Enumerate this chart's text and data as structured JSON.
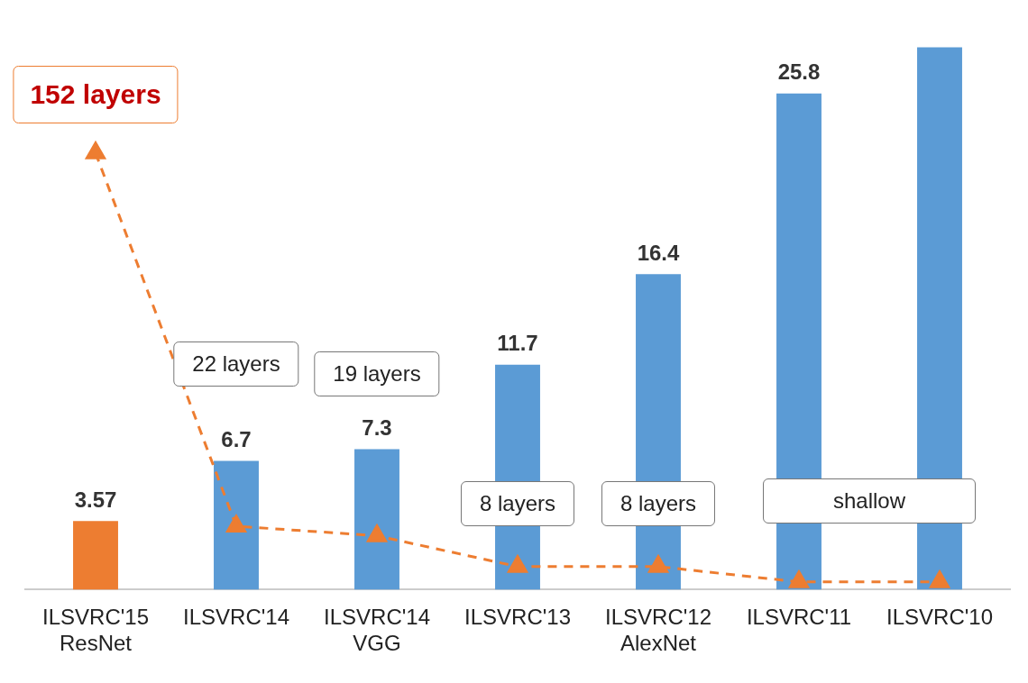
{
  "chart_data": {
    "type": "bar",
    "categories": [
      "ILSVRC'15\nResNet",
      "ILSVRC'14",
      "ILSVRC'14\nVGG",
      "ILSVRC'13",
      "ILSVRC'12\nAlexNet",
      "ILSVRC'11",
      "ILSVRC'10"
    ],
    "series": [
      {
        "colors": [
          "#ed7d31",
          "#5b9bd5",
          "#5b9bd5",
          "#5b9bd5",
          "#5b9bd5",
          "#5b9bd5",
          "#5b9bd5"
        ],
        "values": [
          3.57,
          6.7,
          7.3,
          11.7,
          16.4,
          25.8,
          28.2
        ],
        "value_labels": [
          "3.57",
          "6.7",
          "7.3",
          "11.7",
          "16.4",
          "25.8",
          null
        ]
      },
      {
        "type": "line",
        "color": "#ed7d31",
        "line_style": "dashed",
        "marker": "triangle",
        "values": [
          22.7,
          3.3,
          2.8,
          1.2,
          1.2,
          0.4,
          0.4
        ]
      }
    ],
    "tick_labels": "x",
    "grid": false,
    "legend": false,
    "annotations": [
      "152 layers",
      "22 layers",
      "19 layers",
      "8 layers",
      "8 layers",
      "shallow"
    ]
  }
}
